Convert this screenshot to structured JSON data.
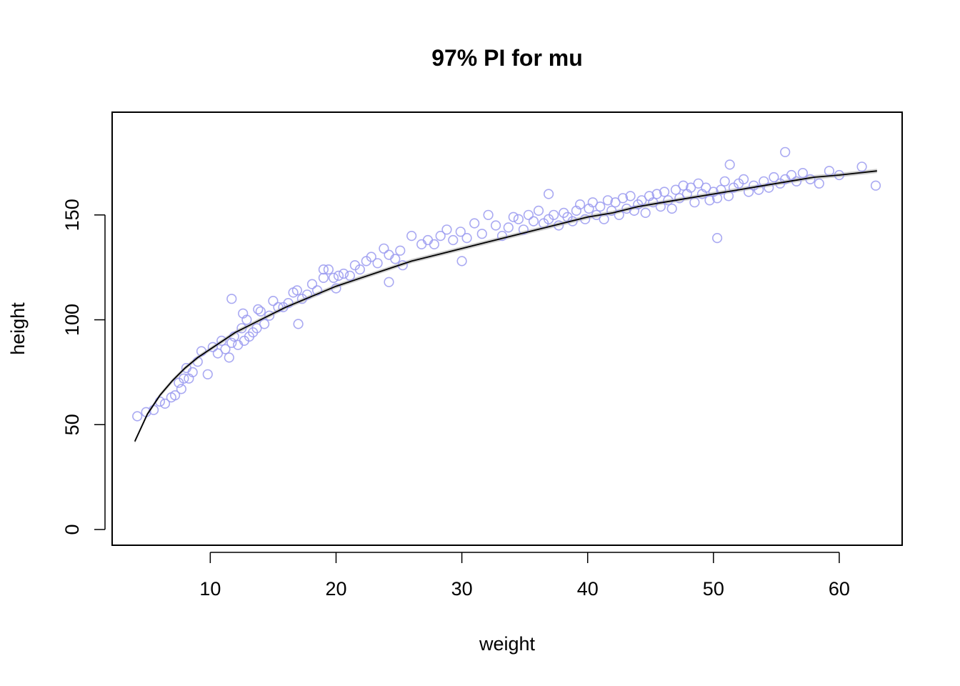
{
  "chart_data": {
    "type": "scatter",
    "title": "97% PI for mu",
    "xlabel": "weight",
    "ylabel": "height",
    "xlim": [
      2.2,
      65.0
    ],
    "ylim": [
      -7.5,
      199.0
    ],
    "x_ticks": [
      10,
      20,
      30,
      40,
      50,
      60
    ],
    "y_ticks": [
      0,
      50,
      100,
      150
    ],
    "grid": false,
    "legend": "none",
    "colors": {
      "points": "#9a9af0",
      "line": "#000000",
      "band": "#cccccc"
    },
    "points_model": {
      "description": "observed height vs weight",
      "a": 42.0,
      "b": 59.7,
      "x0": 4.0
    },
    "mean_line": {
      "x": [
        4,
        5,
        6,
        7,
        8,
        9,
        10,
        12,
        14,
        16,
        18,
        20,
        22,
        24,
        26,
        28,
        30,
        32,
        34,
        36,
        38,
        40,
        42,
        44,
        46,
        48,
        50,
        52,
        54,
        56,
        58,
        60,
        63
      ],
      "y": [
        42,
        55,
        64,
        71,
        77,
        82,
        86,
        94,
        100,
        106,
        111,
        116,
        120,
        124,
        128,
        131,
        134,
        137,
        140,
        143,
        146,
        149,
        151,
        154,
        156,
        158,
        160,
        162,
        164,
        166,
        168,
        169,
        171
      ]
    },
    "scatter": {
      "x": [
        4.2,
        4.9,
        5.5,
        6.0,
        6.4,
        6.9,
        7.2,
        7.5,
        7.7,
        7.9,
        8.1,
        8.3,
        8.6,
        9.0,
        9.3,
        9.8,
        10.2,
        10.6,
        10.9,
        11.2,
        11.5,
        11.7,
        11.9,
        12.2,
        12.5,
        12.7,
        12.9,
        13.1,
        13.4,
        13.7,
        14.0,
        14.3,
        14.7,
        15.0,
        15.4,
        15.8,
        16.2,
        16.6,
        16.9,
        17.3,
        17.7,
        18.1,
        18.5,
        19.0,
        19.4,
        19.8,
        20.2,
        20.6,
        21.1,
        21.5,
        21.9,
        22.4,
        22.8,
        23.3,
        23.8,
        24.2,
        24.7,
        25.1,
        26.0,
        26.8,
        27.3,
        27.8,
        28.3,
        28.8,
        29.3,
        29.9,
        30.4,
        31.0,
        31.6,
        32.1,
        32.7,
        33.2,
        33.7,
        34.1,
        34.5,
        34.9,
        35.3,
        35.7,
        36.1,
        36.5,
        36.9,
        37.3,
        37.7,
        38.1,
        38.4,
        38.8,
        39.1,
        39.4,
        39.8,
        40.1,
        40.4,
        40.7,
        41.0,
        41.3,
        41.6,
        41.9,
        42.2,
        42.5,
        42.8,
        43.1,
        43.4,
        43.7,
        44.0,
        44.3,
        44.6,
        44.9,
        45.2,
        45.5,
        45.8,
        46.1,
        46.4,
        46.7,
        47.0,
        47.3,
        47.6,
        47.9,
        48.2,
        48.5,
        48.8,
        49.1,
        49.4,
        49.7,
        50.0,
        50.3,
        50.6,
        50.9,
        51.2,
        51.6,
        52.0,
        52.4,
        52.8,
        53.2,
        53.6,
        54.0,
        54.4,
        54.8,
        55.3,
        55.7,
        56.2,
        56.6,
        57.1,
        57.7,
        58.4,
        59.2,
        60.0,
        61.8,
        62.9,
        11.7,
        36.9,
        55.7,
        51.3,
        50.3,
        30.0,
        17.0,
        24.2,
        12.6,
        13.8,
        20.0,
        19.0,
        25.3
      ],
      "y": [
        54,
        56,
        57,
        61,
        60,
        63,
        64,
        70,
        67,
        72,
        77,
        72,
        75,
        80,
        85,
        74,
        87,
        84,
        90,
        86,
        82,
        89,
        92,
        88,
        96,
        90,
        100,
        92,
        94,
        96,
        104,
        98,
        102,
        109,
        106,
        106,
        108,
        113,
        114,
        110,
        112,
        117,
        114,
        120,
        124,
        120,
        121,
        122,
        121,
        126,
        124,
        128,
        130,
        127,
        134,
        131,
        129,
        133,
        140,
        136,
        138,
        136,
        140,
        143,
        138,
        142,
        139,
        146,
        141,
        150,
        145,
        140,
        144,
        149,
        148,
        143,
        150,
        147,
        152,
        146,
        148,
        150,
        145,
        151,
        149,
        147,
        152,
        155,
        148,
        153,
        156,
        150,
        154,
        148,
        157,
        152,
        156,
        150,
        158,
        153,
        159,
        152,
        155,
        157,
        151,
        159,
        156,
        160,
        154,
        161,
        157,
        153,
        162,
        158,
        164,
        160,
        163,
        156,
        165,
        160,
        163,
        157,
        161,
        158,
        162,
        166,
        159,
        163,
        165,
        167,
        161,
        164,
        162,
        166,
        163,
        168,
        165,
        167,
        169,
        166,
        170,
        167,
        165,
        171,
        169,
        173,
        164,
        110,
        160,
        180,
        174,
        139,
        128,
        98,
        118,
        103,
        105,
        115,
        124,
        126
      ]
    }
  }
}
